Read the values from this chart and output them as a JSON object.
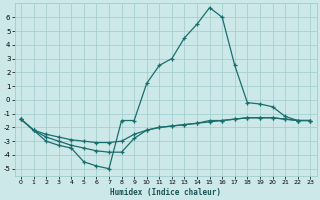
{
  "xlabel": "Humidex (Indice chaleur)",
  "bg_color": "#cce8e8",
  "grid_color": "#a0cccc",
  "line_color": "#1a6e6e",
  "xlim": [
    -0.5,
    23.5
  ],
  "ylim": [
    -5.5,
    7.0
  ],
  "yticks": [
    -5,
    -4,
    -3,
    -2,
    -1,
    0,
    1,
    2,
    3,
    4,
    5,
    6
  ],
  "xticks": [
    0,
    1,
    2,
    3,
    4,
    5,
    6,
    7,
    8,
    9,
    10,
    11,
    12,
    13,
    14,
    15,
    16,
    17,
    18,
    19,
    20,
    21,
    22,
    23
  ],
  "line_peak_x": [
    0,
    1,
    2,
    3,
    4,
    5,
    6,
    7,
    8,
    9,
    10,
    11,
    12,
    13,
    14,
    15,
    16,
    17,
    18,
    19,
    20,
    21,
    22,
    23
  ],
  "line_peak_y": [
    -1.4,
    -2.2,
    -3.0,
    -3.3,
    -3.5,
    -4.5,
    -4.8,
    -5.0,
    -1.5,
    -1.5,
    1.2,
    2.5,
    3.0,
    4.5,
    5.5,
    6.7,
    6.0,
    2.5,
    -0.2,
    -0.3,
    -0.5,
    -1.2,
    -1.5,
    -1.5
  ],
  "line_flat1_x": [
    0,
    1,
    2,
    3,
    4,
    5,
    6,
    7,
    8,
    9,
    10,
    11,
    12,
    13,
    14,
    15,
    16,
    17,
    18,
    19,
    20,
    21,
    22,
    23
  ],
  "line_flat1_y": [
    -1.4,
    -2.2,
    -2.7,
    -3.0,
    -3.3,
    -3.5,
    -3.7,
    -3.8,
    -3.8,
    -2.8,
    -2.2,
    -2.0,
    -1.9,
    -1.8,
    -1.7,
    -1.5,
    -1.5,
    -1.4,
    -1.3,
    -1.3,
    -1.3,
    -1.4,
    -1.5,
    -1.5
  ],
  "line_flat2_x": [
    0,
    1,
    2,
    3,
    4,
    5,
    6,
    7,
    8,
    9,
    10,
    11,
    12,
    13,
    14,
    15,
    16,
    17,
    18,
    19,
    20,
    21,
    22,
    23
  ],
  "line_flat2_y": [
    -1.4,
    -2.2,
    -2.5,
    -2.7,
    -2.9,
    -3.0,
    -3.1,
    -3.1,
    -3.0,
    -2.5,
    -2.2,
    -2.0,
    -1.9,
    -1.8,
    -1.7,
    -1.6,
    -1.5,
    -1.4,
    -1.3,
    -1.3,
    -1.3,
    -1.4,
    -1.5,
    -1.5
  ]
}
